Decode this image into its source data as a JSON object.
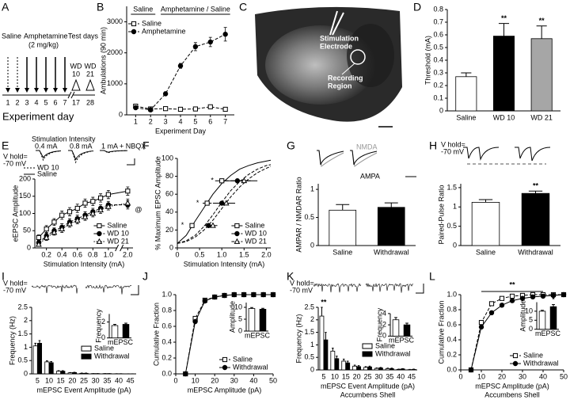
{
  "panel_labels": [
    "A",
    "B",
    "C",
    "D",
    "E",
    "F",
    "G",
    "H",
    "I",
    "J",
    "K",
    "L"
  ],
  "timeline": {
    "pre_label": "Saline",
    "drug_label": "Amphetamine",
    "dose": "(2 mg/kg)",
    "test_label": "Test days",
    "test_days": [
      {
        "line1": "WD",
        "line2": "10"
      },
      {
        "line1": "WD",
        "line2": "21"
      }
    ],
    "days": [
      "1",
      "2",
      "3",
      "4",
      "5",
      "6",
      "7",
      "17",
      "28"
    ],
    "axis_label": "Experiment day"
  },
  "slice": {
    "electrode": [
      "Stimulation",
      "Electrode"
    ],
    "recording": [
      "Recording",
      "Region"
    ]
  },
  "traces": {
    "E": {
      "title": "Stimulation Intensity",
      "conditions": [
        "0.4 mA",
        "0.8 mA",
        "1 mA + NBQX"
      ],
      "holding": [
        "V hold=",
        "-70 mV"
      ],
      "legend": [
        "WD 10",
        "Saline"
      ]
    },
    "G": {
      "labels": [
        "NMDA",
        "AMPA"
      ]
    },
    "H": {
      "holding": [
        "V hold=",
        "-70 mV"
      ]
    },
    "I": {
      "holding": [
        "V hold=",
        "-70 mV"
      ]
    },
    "K": {
      "holding": [
        "V hold=",
        "-70 mV"
      ]
    }
  },
  "chart_data": [
    {
      "type": "line",
      "phases": [
        "Saline",
        "Amphetamine / Saline"
      ],
      "xlabel": "Experiment Day",
      "ylabel": "Ambulations (90 min)",
      "x": [
        1,
        2,
        3,
        4,
        5,
        6,
        7
      ],
      "xlim": [
        0.4,
        7.6
      ],
      "xticks": [
        1,
        2,
        3,
        4,
        5,
        6,
        7
      ],
      "ylim": [
        0,
        3500
      ],
      "yticks": [
        0,
        1000,
        2000,
        3000
      ],
      "legend": "upper-left",
      "series": [
        {
          "name": "Saline",
          "color": "#000000",
          "fill": "#ffffff",
          "marker": "square",
          "dash": "dashed",
          "values": [
            280,
            190,
            200,
            180,
            190,
            260,
            180
          ],
          "errors": [
            40,
            20,
            20,
            20,
            20,
            40,
            20
          ]
        },
        {
          "name": "Amphetamine",
          "color": "#000000",
          "fill": "#000000",
          "marker": "circle",
          "dash": "dashed",
          "values": [
            230,
            160,
            680,
            1580,
            2200,
            2350,
            2600
          ],
          "errors": [
            30,
            20,
            60,
            80,
            130,
            150,
            220
          ]
        }
      ]
    },
    {
      "type": "bar",
      "ylabel": "Threshold (mA)",
      "categories": [
        "Saline",
        "WD 10",
        "WD 21"
      ],
      "values": [
        0.27,
        0.59,
        0.57
      ],
      "errors": [
        0.03,
        0.1,
        0.1
      ],
      "colors": [
        "#ffffff",
        "#000000",
        "#a6a6a6"
      ],
      "significance": [
        null,
        "**",
        "**"
      ],
      "ylim": [
        0,
        0.8
      ],
      "yticks": [
        0,
        0.1,
        0.2,
        0.3,
        0.4,
        0.5,
        0.6,
        0.7,
        0.8
      ]
    },
    {
      "type": "line",
      "xlabel": "Stimulation Intensity (mA)",
      "ylabel": "eEPSC Amplitude",
      "annotation": "@",
      "annotation_position": "right",
      "x": [
        0.1,
        0.2,
        0.3,
        0.4,
        0.5,
        0.6,
        0.7,
        0.8,
        0.9,
        1.0,
        2.0
      ],
      "xlim": [
        0.05,
        2.1
      ],
      "x_break": [
        1.1,
        1.9
      ],
      "xticks": [
        0.2,
        0.4,
        0.6,
        0.8,
        {
          "value": 1.0,
          "label": "1.0"
        },
        {
          "value": 2.0,
          "label": "2.0"
        }
      ],
      "ylim": [
        0,
        200
      ],
      "yticks": [
        0,
        50,
        100,
        150,
        200
      ],
      "legend": "lower-right",
      "series": [
        {
          "name": "Saline",
          "color": "#000000",
          "fill": "#ffffff",
          "marker": "square",
          "dash": "solid",
          "values": [
            30,
            55,
            75,
            95,
            105,
            115,
            130,
            135,
            145,
            155,
            165
          ],
          "errors": [
            8,
            10,
            10,
            12,
            12,
            12,
            12,
            12,
            12,
            12,
            12
          ]
        },
        {
          "name": "WD 10",
          "color": "#000000",
          "fill": "#000000",
          "marker": "circle",
          "dash": "dashed",
          "values": [
            15,
            35,
            50,
            60,
            75,
            85,
            95,
            105,
            115,
            125,
            125
          ],
          "errors": [
            5,
            8,
            8,
            10,
            10,
            10,
            10,
            10,
            10,
            10,
            12
          ]
        },
        {
          "name": "WD 21",
          "color": "#000000",
          "fill": "#ffffff",
          "marker": "triangle",
          "dash": "dotted",
          "values": [
            10,
            30,
            45,
            55,
            70,
            80,
            90,
            100,
            110,
            120,
            130
          ],
          "errors": [
            5,
            8,
            8,
            10,
            10,
            10,
            10,
            10,
            10,
            10,
            12
          ]
        }
      ]
    },
    {
      "type": "line",
      "xlabel": "Stimulation Intensity (mA)",
      "ylabel": "% Maximum EPSC Amplitude",
      "xlim": [
        0,
        2.1
      ],
      "xticks": [
        0,
        0.5,
        {
          "value": 1,
          "label": "1.0"
        },
        1.5,
        {
          "value": 2,
          "label": "2.0"
        }
      ],
      "ylim": [
        0,
        100
      ],
      "yticks": [
        0,
        20,
        40,
        60,
        80,
        100
      ],
      "legend": "lower-right",
      "fit_x": [
        0,
        0.2,
        0.4,
        0.6,
        0.8,
        1.0,
        1.2,
        1.4,
        1.6,
        1.8,
        2.0,
        2.1
      ],
      "series": [
        {
          "name": "Saline",
          "color": "#000000",
          "fill": "#ffffff",
          "marker": "square",
          "dash": "solid",
          "x": [
            0.33,
            0.67,
            1.0
          ],
          "values": [
            25,
            50,
            75
          ],
          "xerrors": [
            0.04,
            0.1,
            0.15
          ],
          "significance": [
            "*",
            "*",
            "*"
          ],
          "fit": [
            5,
            14,
            30,
            45,
            60,
            72,
            81,
            88,
            92,
            95,
            97,
            98
          ]
        },
        {
          "name": "WD 10",
          "color": "#000000",
          "fill": "#000000",
          "marker": "circle",
          "dash": "dashed",
          "x": [
            0.7,
            1.0,
            1.35
          ],
          "values": [
            25,
            50,
            75
          ],
          "xerrors": [
            0.1,
            0.2,
            0.3
          ],
          "fit": [
            5,
            8,
            14,
            24,
            37,
            51,
            64,
            74,
            82,
            88,
            92,
            93
          ]
        },
        {
          "name": "WD 21",
          "color": "#000000",
          "fill": "#ffffff",
          "marker": "triangle",
          "dash": "dashed",
          "x": [
            0.8,
            1.1,
            1.5
          ],
          "values": [
            25,
            50,
            75
          ],
          "xerrors": [
            0.1,
            0.2,
            0.3
          ],
          "fit": [
            5,
            7,
            12,
            20,
            31,
            44,
            57,
            68,
            77,
            84,
            89,
            91
          ]
        }
      ]
    },
    {
      "type": "bar",
      "ylabel": "AMPAR / NMDAR Ratio",
      "categories": [
        "Saline",
        "Withdrawal"
      ],
      "values": [
        0.63,
        0.68
      ],
      "errors": [
        0.1,
        0.08
      ],
      "colors": [
        "#ffffff",
        "#000000"
      ],
      "ylim": [
        0,
        1.1
      ],
      "yticks": [
        0,
        0.5,
        1
      ]
    },
    {
      "type": "bar",
      "ylabel": "Paired-Pulse Ratio",
      "categories": [
        "Saline",
        "Withdrawal"
      ],
      "values": [
        1.12,
        1.35
      ],
      "errors": [
        0.07,
        0.06
      ],
      "colors": [
        "#ffffff",
        "#000000"
      ],
      "significance": [
        null,
        "**"
      ],
      "ylim": [
        0,
        1.6
      ],
      "yticks": [
        0,
        0.5,
        1,
        1.5
      ]
    },
    {
      "type": "bar",
      "xlabel": "mEPSC Event Amplitude (pA)",
      "ylabel": "Frequency (Hz)",
      "categories": [
        "5",
        "10",
        "15",
        "20",
        "25",
        "30",
        "35",
        "40",
        "45"
      ],
      "ylim": [
        0,
        2.5
      ],
      "yticks": [
        0,
        0.5,
        1,
        1.5,
        2,
        2.5
      ],
      "legend": "center-right",
      "series": [
        {
          "name": "Saline",
          "color": "#ffffff",
          "values": [
            1.05,
            0.45,
            0.1,
            0.04,
            0.02,
            0.01,
            0.01,
            0.005,
            0.002
          ],
          "errors": [
            0.1,
            0.04,
            0.02,
            0.01,
            0.01,
            0,
            0,
            0,
            0
          ]
        },
        {
          "name": "Withdrawal",
          "color": "#000000",
          "values": [
            1.15,
            0.42,
            0.1,
            0.05,
            0.02,
            0.01,
            0.01,
            0.005,
            0.002
          ],
          "errors": [
            0.1,
            0.04,
            0.02,
            0.01,
            0.01,
            0,
            0,
            0,
            0
          ]
        }
      ],
      "inset": {
        "type": "bar",
        "ylabel": "Frequency",
        "xlabel": "mEPSC",
        "categories": [
          null,
          null
        ],
        "values": [
          1.55,
          1.7
        ],
        "errors": [
          0.15,
          0.15
        ],
        "colors": [
          "#ffffff",
          "#000000"
        ],
        "ylim": [
          0,
          3
        ],
        "yticks": [
          0,
          2
        ]
      }
    },
    {
      "type": "line",
      "xlabel": "mEPSC Amplitude (pA)",
      "ylabel": "Cumulative Fraction",
      "x": [
        5,
        10,
        15,
        20,
        25,
        30,
        35,
        40,
        45,
        50
      ],
      "xlim": [
        0,
        50
      ],
      "xticks": [
        0,
        10,
        20,
        30,
        40,
        50
      ],
      "ylim": [
        0,
        1
      ],
      "yticks": [
        {
          "value": 0,
          "label": "0.0"
        },
        0.2,
        0.4,
        0.6,
        0.8,
        {
          "value": 1,
          "label": "1.0"
        }
      ],
      "legend": "lower-right",
      "series": [
        {
          "name": "Saline",
          "color": "#000000",
          "fill": "#ffffff",
          "marker": "square",
          "dash": "dashed",
          "values": [
            0,
            0.7,
            0.93,
            0.97,
            0.99,
            1,
            1,
            1,
            1,
            1
          ]
        },
        {
          "name": "Withdrawal",
          "color": "#000000",
          "fill": "#000000",
          "marker": "circle",
          "dash": "solid",
          "values": [
            0,
            0.66,
            0.92,
            0.97,
            0.99,
            1,
            1,
            1,
            1,
            1
          ]
        }
      ],
      "inset": {
        "type": "bar",
        "ylabel": "Amplitude",
        "xlabel": "mEPSC",
        "categories": [
          null,
          null
        ],
        "values": [
          9.5,
          9.2
        ],
        "errors": [
          0.4,
          0.4
        ],
        "colors": [
          "#ffffff",
          "#000000"
        ],
        "ylim": [
          0,
          12
        ],
        "yticks": [
          0,
          5,
          10
        ]
      }
    },
    {
      "type": "bar",
      "xlabel": "mEPSC Event Amplitude (pA)",
      "xlabel_sub": "Accumbens Shell",
      "ylabel": "Frequency (Hz)",
      "categories": [
        "5",
        "10",
        "15",
        "20",
        "25",
        "30",
        "35",
        "40",
        "45"
      ],
      "ylim": [
        0,
        2.5
      ],
      "yticks": [
        0,
        0.5,
        1,
        1.5,
        2,
        2.5
      ],
      "legend": "center-right",
      "significance": [
        "**",
        null,
        null,
        null,
        null,
        null,
        null,
        null,
        null
      ],
      "series": [
        {
          "name": "Saline",
          "color": "#ffffff",
          "values": [
            2.15,
            0.75,
            0.35,
            0.15,
            0.1,
            0.06,
            0.05,
            0.02,
            0.01
          ],
          "errors": [
            0.35,
            0.12,
            0.08,
            0.04,
            0.03,
            0.02,
            0.02,
            0.01,
            0.01
          ]
        },
        {
          "name": "Withdrawal",
          "color": "#000000",
          "values": [
            1.2,
            0.45,
            0.28,
            0.13,
            0.12,
            0.08,
            0.05,
            0.04,
            0.02
          ],
          "errors": [
            0.3,
            0.1,
            0.07,
            0.04,
            0.03,
            0.02,
            0.02,
            0.01,
            0.01
          ]
        }
      ],
      "inset": {
        "type": "bar",
        "ylabel": "Frequency",
        "xlabel": "mEPSC",
        "categories": [
          null,
          null
        ],
        "values": [
          2.9,
          2.0
        ],
        "errors": [
          0.4,
          0.3
        ],
        "colors": [
          "#ffffff",
          "#000000"
        ],
        "ylim": [
          0,
          4
        ],
        "yticks": [
          0,
          2,
          4
        ]
      }
    },
    {
      "type": "line",
      "xlabel": "mEPSC Amplitude (pA)",
      "xlabel_sub": "Accumbens Shell",
      "ylabel": "Cumulative Fraction",
      "annotation": "**",
      "annotation_position": "top",
      "x": [
        5,
        10,
        15,
        20,
        25,
        30,
        35,
        40,
        45,
        50
      ],
      "xlim": [
        0,
        50
      ],
      "xticks": [
        0,
        10,
        20,
        30,
        40,
        50
      ],
      "ylim": [
        0,
        1
      ],
      "yticks": [
        {
          "value": 0,
          "label": "0.0"
        },
        0.2,
        0.4,
        0.6,
        0.8,
        {
          "value": 1,
          "label": "1.0"
        }
      ],
      "legend": "lower-right",
      "series": [
        {
          "name": "Saline",
          "color": "#000000",
          "fill": "#ffffff",
          "marker": "square",
          "dash": "dashed",
          "values": [
            0,
            0.63,
            0.88,
            0.95,
            0.98,
            0.99,
            1,
            1,
            1,
            1
          ]
        },
        {
          "name": "Withdrawal",
          "color": "#000000",
          "fill": "#000000",
          "marker": "circle",
          "dash": "solid",
          "values": [
            0,
            0.57,
            0.76,
            0.86,
            0.92,
            0.95,
            0.97,
            0.98,
            0.99,
            1
          ]
        }
      ],
      "inset": {
        "type": "bar",
        "ylabel": "Amplitude",
        "xlabel": "mEPSC",
        "categories": [
          null,
          null
        ],
        "values": [
          10,
          12.5
        ],
        "errors": [
          0.5,
          1.2
        ],
        "significance": [
          null,
          "*"
        ],
        "colors": [
          "#ffffff",
          "#000000"
        ],
        "ylim": [
          0,
          15
        ],
        "yticks": [
          0,
          5,
          10
        ]
      }
    }
  ]
}
